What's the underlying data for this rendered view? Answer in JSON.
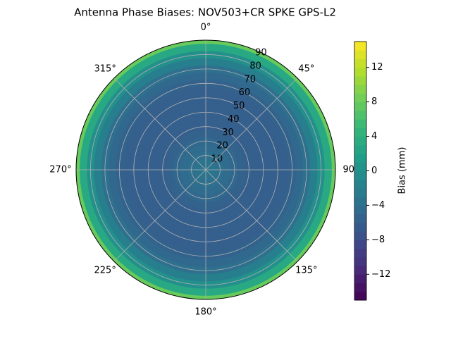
{
  "chart_data": {
    "type": "polar_contour",
    "title": "Antenna Phase Biases: NOV503+CR       SPKE GPS-L2",
    "colormap": "viridis",
    "zenith": [
      0,
      5,
      10,
      15,
      20,
      25,
      30,
      35,
      40,
      45,
      50,
      55,
      60,
      65,
      70,
      75,
      80,
      85,
      90
    ],
    "values": [
      -3,
      -3.5,
      -4,
      -4.5,
      -5,
      -5.5,
      -6,
      -6,
      -6,
      -6,
      -6,
      -6,
      -5.5,
      -5,
      -4,
      -2,
      0,
      3,
      8
    ],
    "rlim": [
      0,
      90
    ],
    "rticks": [
      10,
      20,
      30,
      40,
      50,
      60,
      70,
      80,
      90
    ],
    "thetaticks": [
      {
        "value": 0,
        "label": "0°"
      },
      {
        "value": 45,
        "label": "45°"
      },
      {
        "value": 90,
        "label": "90°"
      },
      {
        "value": 135,
        "label": "135°"
      },
      {
        "value": 180,
        "label": "180°"
      },
      {
        "value": 225,
        "label": "225°"
      },
      {
        "value": 270,
        "label": "270°"
      },
      {
        "value": 315,
        "label": "315°"
      }
    ],
    "colorbar_label": "Bias (mm)",
    "clim": [
      -15,
      15
    ],
    "cticks": [
      {
        "value": -12,
        "label": "−12"
      },
      {
        "value": -8,
        "label": "−8"
      },
      {
        "value": -4,
        "label": "−4"
      },
      0,
      4,
      8,
      12
    ],
    "grid": true
  }
}
